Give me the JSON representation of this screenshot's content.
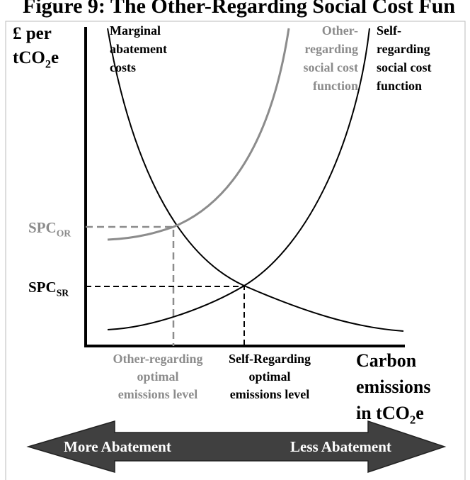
{
  "title": "Figure 9: The Other-Regarding Social Cost Fun",
  "y_axis_label": [
    "£ per",
    {
      "main": "tCO",
      "sub": "2",
      "end": "e"
    }
  ],
  "x_axis_label": [
    "Carbon",
    "emissions",
    {
      "main": "in tCO",
      "sub": "2",
      "end": "e"
    }
  ],
  "curves": {
    "marginal_abatement": [
      "Marginal",
      "abatement",
      "costs"
    ],
    "other_regarding": [
      "Other-",
      "regarding",
      "social cost",
      "function"
    ],
    "self_regarding": [
      "Self-",
      "regarding",
      "social cost",
      "function"
    ]
  },
  "price_levels": {
    "other_regarding": {
      "main": "SPC",
      "sub": "OR"
    },
    "self_regarding": {
      "main": "SPC",
      "sub": "SR"
    }
  },
  "emission_levels": {
    "other_regarding": [
      "Other-regarding",
      "optimal",
      "emissions level"
    ],
    "self_regarding": [
      "Self-Regarding",
      "optimal",
      "emissions level"
    ]
  },
  "arrow": {
    "left": "More Abatement",
    "right": "Less Abatement"
  }
}
